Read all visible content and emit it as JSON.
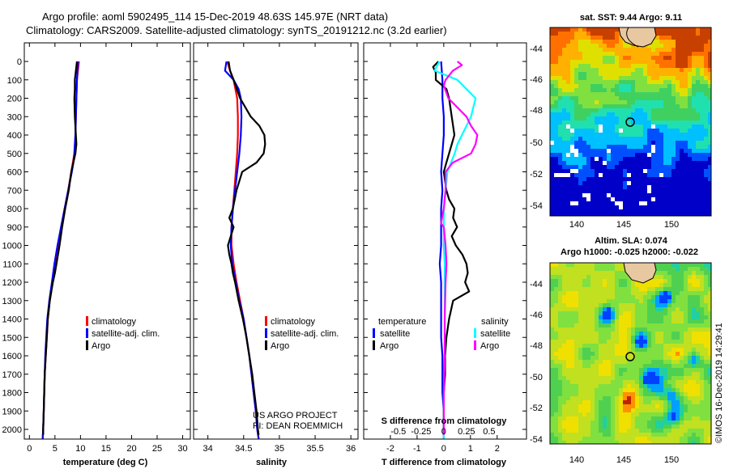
{
  "header": {
    "line1": "Argo profile: aoml 5902495_114 15-Dec-2019 48.63S 145.97E (NRT data)",
    "line2": "Climatology: CARS2009. Satellite-adjusted climatology: synTS_20191212.nc (3.2d earlier)"
  },
  "colors": {
    "climatology": "#ff0000",
    "satellite_adj": "#0000ff",
    "argo": "#000000",
    "salinity_sat": "#00ffff",
    "salinity_argo": "#ff00ff"
  },
  "chart_data": [
    {
      "type": "line",
      "panel": "temperature",
      "xlabel": "temperature (deg C)",
      "ylabel": "",
      "xlim": [
        -1,
        31.5
      ],
      "ylim": [
        2070,
        0
      ],
      "xticks": [
        0,
        5,
        10,
        15,
        20,
        25,
        30
      ],
      "xtick_labels": [
        "0",
        "5",
        "10",
        "15",
        "20",
        "25",
        "30"
      ],
      "yticks": [
        0,
        100,
        200,
        300,
        400,
        500,
        600,
        700,
        800,
        900,
        1000,
        1100,
        1200,
        1300,
        1400,
        1500,
        1600,
        1700,
        1800,
        1900,
        2000
      ],
      "ytick_labels": [
        "0",
        "100",
        "200",
        "300",
        "400",
        "500",
        "600",
        "700",
        "800",
        "900",
        "1000",
        "1100",
        "1200",
        "1300",
        "1400",
        "1500",
        "1600",
        "1700",
        "1800",
        "1900",
        "2000"
      ],
      "legend": [
        "climatology",
        "satellite-adj. clim.",
        "Argo"
      ],
      "series": [
        {
          "name": "climatology",
          "color": "#ff0000",
          "depth": [
            0,
            50,
            100,
            200,
            300,
            400,
            500,
            550,
            600,
            700,
            800,
            900,
            1000,
            1100,
            1200,
            1300,
            1400,
            1500,
            1600,
            1700,
            1800,
            1900,
            2000,
            2050
          ],
          "values": [
            9.7,
            9.5,
            9.3,
            9.2,
            9.1,
            9.0,
            8.8,
            8.5,
            8.2,
            7.6,
            6.9,
            6.2,
            5.6,
            5.0,
            4.5,
            4.0,
            3.6,
            3.4,
            3.2,
            3.0,
            2.9,
            2.8,
            2.7,
            2.6
          ]
        },
        {
          "name": "satellite-adj. clim.",
          "color": "#0000ff",
          "depth": [
            0,
            50,
            100,
            200,
            300,
            400,
            500,
            550,
            600,
            700,
            800,
            900,
            1000,
            1100,
            1200,
            1300,
            1400,
            1500,
            1600,
            1700,
            1800,
            1900,
            2000,
            2050
          ],
          "values": [
            9.5,
            9.4,
            9.3,
            9.2,
            9.1,
            9.0,
            8.8,
            8.6,
            8.3,
            7.6,
            6.9,
            6.2,
            5.5,
            4.9,
            4.4,
            3.9,
            3.5,
            3.3,
            3.1,
            3.0,
            2.9,
            2.8,
            2.7,
            2.6
          ]
        },
        {
          "name": "Argo",
          "color": "#000000",
          "depth": [
            0,
            50,
            100,
            150,
            200,
            300,
            400,
            450,
            500,
            550,
            600,
            700,
            800,
            900,
            1000,
            1050,
            1100,
            1150,
            1200,
            1300,
            1400,
            1500,
            1600,
            1700,
            1800,
            1900,
            2000,
            2030
          ],
          "values": [
            9.3,
            9.1,
            8.9,
            8.9,
            8.8,
            8.9,
            9.1,
            9.2,
            9.0,
            8.6,
            8.2,
            7.7,
            7.0,
            6.4,
            5.9,
            5.6,
            5.3,
            5.0,
            4.6,
            4.0,
            3.6,
            3.4,
            3.2,
            3.0,
            2.9,
            2.8,
            2.7,
            2.7
          ]
        }
      ]
    },
    {
      "type": "line",
      "panel": "salinity",
      "xlabel": "salinity",
      "ylabel": "",
      "xlim": [
        33.8,
        36.1
      ],
      "ylim": [
        2070,
        0
      ],
      "xticks": [
        34,
        34.5,
        35,
        35.5,
        36
      ],
      "xtick_labels": [
        "34",
        "34.5",
        "35",
        "35.5",
        "36"
      ],
      "legend": [
        "climatology",
        "satellite-adj. clim.",
        "Argo"
      ],
      "annotation": [
        "US ARGO PROJECT",
        "PI: DEAN ROEMMICH"
      ],
      "series": [
        {
          "name": "climatology",
          "color": "#ff0000",
          "depth": [
            0,
            50,
            100,
            200,
            300,
            400,
            500,
            600,
            700,
            800,
            900,
            1000,
            1100,
            1200,
            1300,
            1400,
            1500,
            1600,
            1700,
            1800,
            1900,
            2000,
            2050
          ],
          "values": [
            34.27,
            34.31,
            34.36,
            34.41,
            34.42,
            34.42,
            34.41,
            34.39,
            34.37,
            34.35,
            34.33,
            34.33,
            34.36,
            34.4,
            34.45,
            34.5,
            34.54,
            34.58,
            34.61,
            34.64,
            34.67,
            34.69,
            34.71
          ]
        },
        {
          "name": "satellite-adj. clim.",
          "color": "#0000ff",
          "depth": [
            0,
            50,
            100,
            150,
            200,
            300,
            400,
            500,
            600,
            700,
            800,
            900,
            1000,
            1100,
            1200,
            1300,
            1400,
            1500,
            1600,
            1700,
            1800,
            1900,
            2000,
            2050
          ],
          "values": [
            34.26,
            34.24,
            34.36,
            34.43,
            34.46,
            34.47,
            34.46,
            34.44,
            34.41,
            34.38,
            34.35,
            34.33,
            34.32,
            34.34,
            34.39,
            34.44,
            34.5,
            34.54,
            34.58,
            34.61,
            34.64,
            34.67,
            34.69,
            34.71
          ]
        },
        {
          "name": "Argo",
          "color": "#000000",
          "depth": [
            0,
            50,
            100,
            200,
            300,
            350,
            400,
            450,
            500,
            550,
            600,
            700,
            800,
            850,
            900,
            1000,
            1050,
            1100,
            1150,
            1200,
            1300,
            1400,
            1500,
            1600,
            1700,
            1800,
            1900,
            2000,
            2030
          ],
          "values": [
            34.29,
            34.31,
            34.36,
            34.45,
            34.6,
            34.72,
            34.79,
            34.8,
            34.78,
            34.68,
            34.48,
            34.4,
            34.35,
            34.3,
            34.36,
            34.28,
            34.3,
            34.33,
            34.35,
            34.38,
            34.43,
            34.49,
            34.54,
            34.58,
            34.62,
            34.65,
            34.68,
            34.7,
            34.71
          ]
        }
      ]
    },
    {
      "type": "line",
      "panel": "difference",
      "xlabel": "T difference from climatology",
      "xlabel_top": "S difference from climatology",
      "xlim": [
        -3,
        3.1
      ],
      "ylim": [
        2070,
        0
      ],
      "xticks": [
        -2,
        -1,
        0,
        1,
        2
      ],
      "xtick_labels": [
        "-2",
        "-1",
        "0",
        "1",
        "2"
      ],
      "sticks_values": [
        -0.5,
        -0.25,
        0,
        0.25,
        0.5
      ],
      "sticks_labels": [
        "-0.5",
        "-0.25",
        "0",
        "0.25",
        "0.5"
      ],
      "legend_groups": [
        {
          "title": "temperature",
          "items": [
            "satellite",
            "Argo"
          ]
        },
        {
          "title": "salinity",
          "items": [
            "satellite",
            "Argo"
          ]
        }
      ],
      "series": [
        {
          "name": "T satellite",
          "color": "#0000ff",
          "depth": [
            0,
            100,
            200,
            300,
            400,
            500,
            600,
            700,
            800,
            900,
            1000,
            1100,
            1200,
            1300,
            1400,
            1500,
            1600,
            1700,
            1800,
            1900,
            2000,
            2050
          ],
          "values": [
            -0.1,
            -0.05,
            -0.05,
            0,
            0,
            -0.05,
            -0.1,
            -0.05,
            -0.1,
            -0.1,
            -0.1,
            -0.15,
            -0.1,
            -0.1,
            -0.1,
            -0.1,
            -0.05,
            -0.05,
            -0.05,
            0,
            0,
            0
          ]
        },
        {
          "name": "T Argo",
          "color": "#000000",
          "depth": [
            0,
            30,
            60,
            100,
            150,
            200,
            300,
            400,
            450,
            500,
            550,
            600,
            650,
            700,
            750,
            800,
            850,
            900,
            950,
            1000,
            1050,
            1100,
            1150,
            1200,
            1250,
            1300,
            1400,
            1500,
            1600,
            1700,
            1800,
            1900,
            2000,
            2030
          ],
          "values": [
            -0.2,
            -0.4,
            -0.3,
            -0.3,
            0.1,
            0.2,
            0.3,
            0.4,
            0.3,
            0.2,
            0.1,
            0,
            0.05,
            0.1,
            0.2,
            0.4,
            0.35,
            0.5,
            0.3,
            0.45,
            0.7,
            0.85,
            0.9,
            0.8,
            0.95,
            0.35,
            0.2,
            0.1,
            0.05,
            0.05,
            0,
            0,
            0,
            0
          ]
        },
        {
          "name": "S satellite",
          "color": "#00ffff",
          "depth": [
            0,
            50,
            100,
            200,
            300,
            400,
            450,
            500,
            550,
            600,
            700,
            800,
            900,
            1000,
            1100,
            1200,
            1400,
            1600,
            1800,
            2000,
            2050
          ],
          "values": [
            -0.05,
            -0.1,
            0.15,
            0.35,
            0.3,
            0.2,
            0.15,
            0.12,
            0.08,
            0.04,
            0.02,
            0,
            0,
            0,
            0.01,
            0.01,
            0.01,
            0.01,
            0,
            0,
            0
          ]
        },
        {
          "name": "S Argo",
          "color": "#ff00ff",
          "depth": [
            0,
            20,
            50,
            100,
            130,
            200,
            300,
            350,
            400,
            450,
            500,
            550,
            600,
            700,
            800,
            880,
            900,
            950,
            1000,
            1100,
            1200,
            1400,
            1600,
            1800,
            2000,
            2030
          ],
          "values": [
            0.15,
            0.2,
            0.1,
            0.02,
            0.0,
            0.05,
            0.25,
            0.3,
            0.37,
            0.35,
            0.3,
            0.1,
            0.02,
            0.02,
            0,
            -0.03,
            0,
            0.01,
            0.02,
            0.03,
            0.02,
            0.01,
            0.01,
            0,
            0,
            0
          ]
        }
      ]
    }
  ],
  "maps": {
    "sst": {
      "title": "sat. SST: 9.44 Argo: 9.11",
      "yticks": [
        "-44",
        "-46",
        "-48",
        "-50",
        "-52",
        "-54"
      ],
      "xticks": [
        "140",
        "145",
        "150"
      ]
    },
    "sla": {
      "title1": "Altim. SLA: 0.074",
      "title2": "Argo h1000: -0.025 h2000: -0.022",
      "yticks": [
        "-44",
        "-46",
        "-48",
        "-50",
        "-52",
        "-54"
      ],
      "xticks": [
        "140",
        "145",
        "150"
      ]
    }
  },
  "credit": "©IMOS 16-Dec-2019 14:29:41"
}
